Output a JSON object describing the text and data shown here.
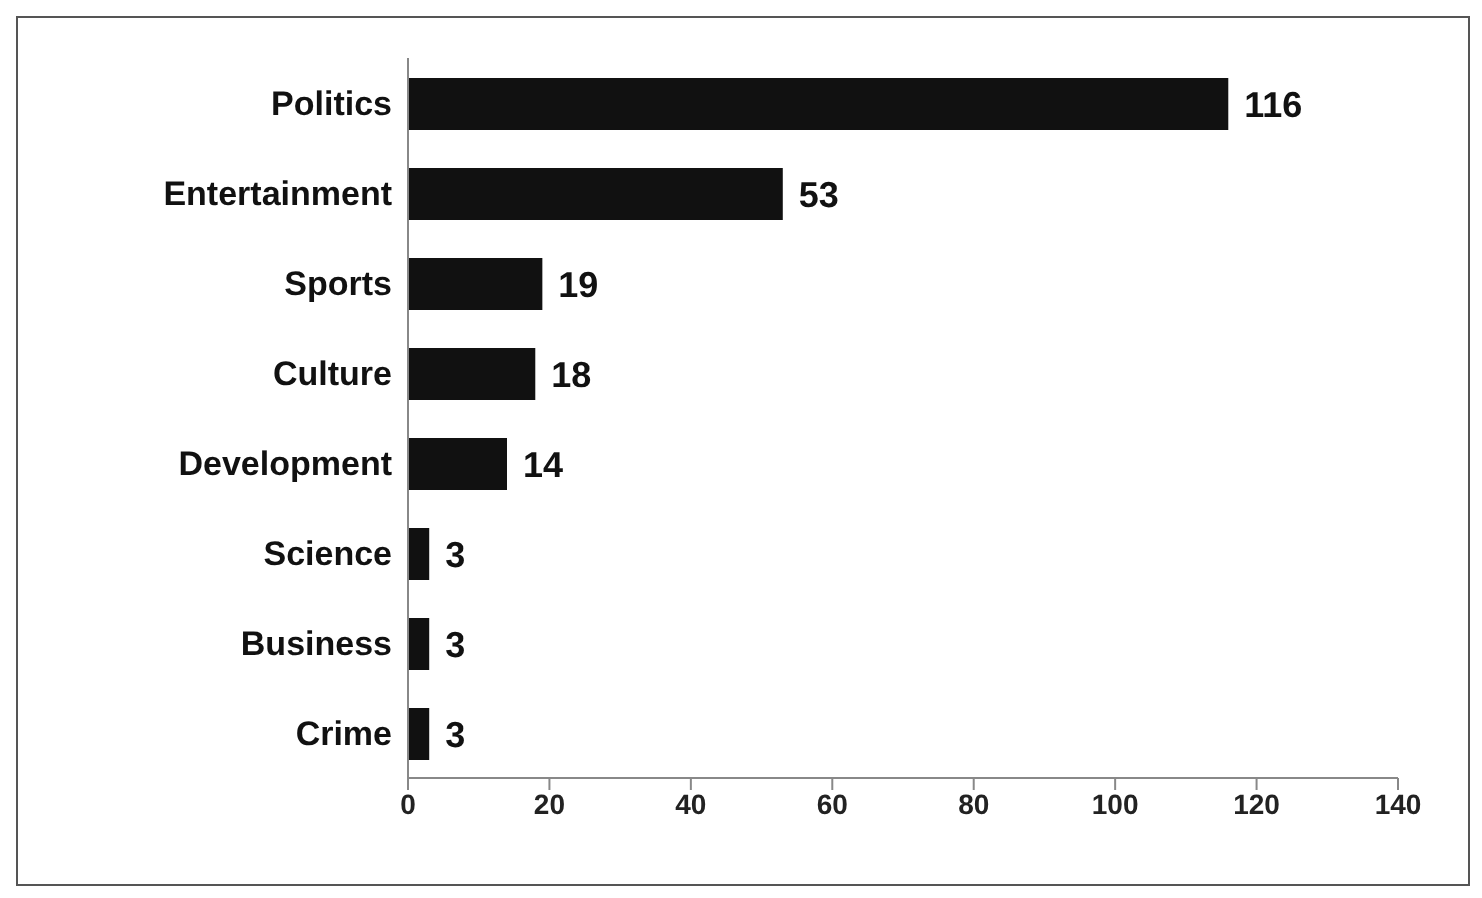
{
  "chart_data": {
    "type": "bar",
    "orientation": "horizontal",
    "categories": [
      "Politics",
      "Entertainment",
      "Sports",
      "Culture",
      "Development",
      "Science",
      "Business",
      "Crime"
    ],
    "values": [
      116,
      53,
      19,
      18,
      14,
      3,
      3,
      3
    ],
    "color": "#111111",
    "data_labels": true,
    "xlim": [
      0,
      140
    ],
    "xticks": [
      0,
      20,
      40,
      60,
      80,
      100,
      120,
      140
    ],
    "grid": false
  }
}
